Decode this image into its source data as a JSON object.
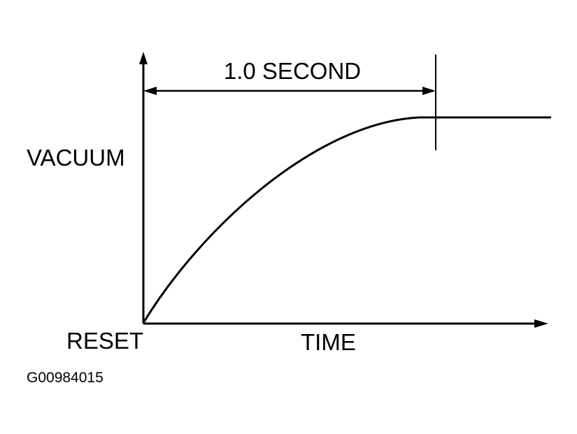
{
  "labels": {
    "dimension": "1.0 SECOND",
    "y_axis": "VACUUM",
    "origin": "RESET",
    "x_axis": "TIME",
    "figure_id": "G00984015"
  }
}
